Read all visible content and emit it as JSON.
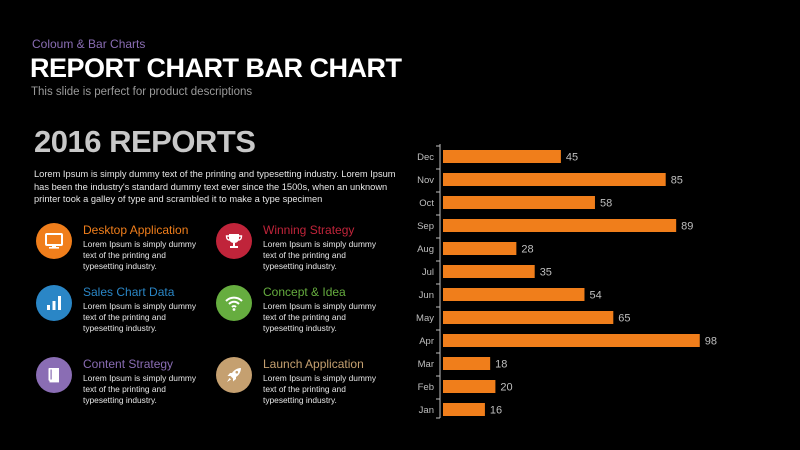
{
  "header": {
    "supertitle": "Coloum  & Bar Charts",
    "title": "REPORT CHART BAR CHART",
    "subtitle": "This slide is perfect for product descriptions"
  },
  "section": {
    "title": "2016 REPORTS",
    "intro": "Lorem Ipsum is simply dummy text of the printing and typesetting industry. Lorem Ipsum has been the industry's standard dummy text ever since the 1500s, when an unknown printer took a galley of type and scrambled it to make a type specimen"
  },
  "features": [
    {
      "title": "Desktop Application",
      "desc": "Lorem Ipsum is simply dummy text of the printing and typesetting industry.",
      "color": "#f07e1b",
      "icon": "monitor-icon"
    },
    {
      "title": "Winning Strategy",
      "desc": "Lorem Ipsum is simply dummy text of the printing and typesetting industry.",
      "color": "#c0243a",
      "icon": "trophy-icon"
    },
    {
      "title": "Sales Chart Data",
      "desc": "Lorem Ipsum is simply dummy text of the printing and typesetting industry.",
      "color": "#2a86c6",
      "icon": "bar-chart-icon"
    },
    {
      "title": "Concept & Idea",
      "desc": "Lorem Ipsum is simply dummy text of the printing and typesetting industry.",
      "color": "#66ad3f",
      "icon": "wifi-icon"
    },
    {
      "title": "Content Strategy",
      "desc": "Lorem Ipsum is simply dummy text of the printing and typesetting industry.",
      "color": "#8a6db4",
      "icon": "book-icon"
    },
    {
      "title": "Launch Application",
      "desc": "Lorem Ipsum is simply dummy text of the printing and typesetting industry.",
      "color": "#c5a070",
      "icon": "rocket-icon"
    }
  ],
  "chart_data": {
    "type": "bar",
    "orientation": "horizontal",
    "categories": [
      "Dec",
      "Nov",
      "Oct",
      "Sep",
      "Aug",
      "Jul",
      "Jun",
      "May",
      "Apr",
      "Mar",
      "Feb",
      "Jan"
    ],
    "values": [
      45,
      85,
      58,
      89,
      28,
      35,
      54,
      65,
      98,
      18,
      20,
      16
    ],
    "xlim": [
      0,
      100
    ],
    "grid": false,
    "legend": "none",
    "bar_color": "#f07e1b",
    "label_color": "#bfbfbf"
  }
}
